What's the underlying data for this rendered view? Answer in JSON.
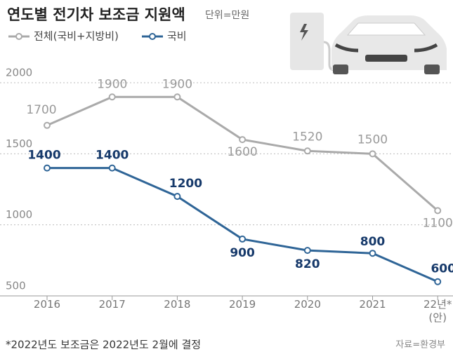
{
  "chart_data": {
    "type": "line",
    "title": "연도별 전기차 보조금 지원액",
    "subtitle": "단위=만원",
    "categories": [
      "2016",
      "2017",
      "2018",
      "2019",
      "2020",
      "2021",
      "22년*\n(안)"
    ],
    "series": [
      {
        "name": "전체(국비+지방비)",
        "color": "#aaaaaa",
        "label_color": "#9a9a9a",
        "values": [
          1700,
          1900,
          1900,
          1600,
          1520,
          1500,
          1100
        ]
      },
      {
        "name": "국비",
        "color": "#2f6597",
        "label_color": "#173a6b",
        "values": [
          1400,
          1400,
          1200,
          900,
          820,
          800,
          600
        ]
      }
    ],
    "ylim": [
      500,
      2000
    ],
    "yticks": [
      500,
      1000,
      1500,
      2000
    ],
    "grid": true,
    "note": "*2022년도 보조금은 2022년도 2월에 결정",
    "source": "자료=환경부"
  }
}
